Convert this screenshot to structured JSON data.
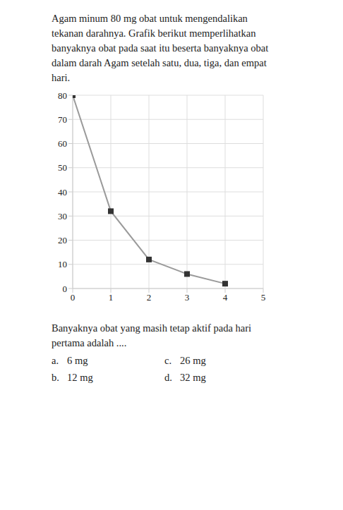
{
  "intro": "Agam minum 80 mg obat untuk mengendalikan tekanan darahnya. Grafik berikut memperlihatkan banyaknya obat pada saat itu beserta banyaknya obat dalam darah Agam setelah satu, dua, tiga, dan empat hari.",
  "chart_data": {
    "type": "line",
    "x": [
      0,
      1,
      2,
      3,
      4
    ],
    "values": [
      80,
      32,
      12,
      6,
      2
    ],
    "color": "#9a9a9a",
    "marker": "square",
    "xlim": [
      0,
      5
    ],
    "xticks": [
      0,
      1,
      2,
      3,
      4,
      5
    ],
    "ylim": [
      0,
      80
    ],
    "yticks": [
      0,
      10,
      20,
      30,
      40,
      50,
      60,
      70,
      80
    ],
    "grid": true
  },
  "question": "Banyaknya obat yang masih tetap aktif pada hari pertama adalah ....",
  "options": [
    {
      "label": "a.",
      "text": "6 mg"
    },
    {
      "label": "b.",
      "text": "12 mg"
    },
    {
      "label": "c.",
      "text": "26 mg"
    },
    {
      "label": "d.",
      "text": "32 mg"
    }
  ]
}
